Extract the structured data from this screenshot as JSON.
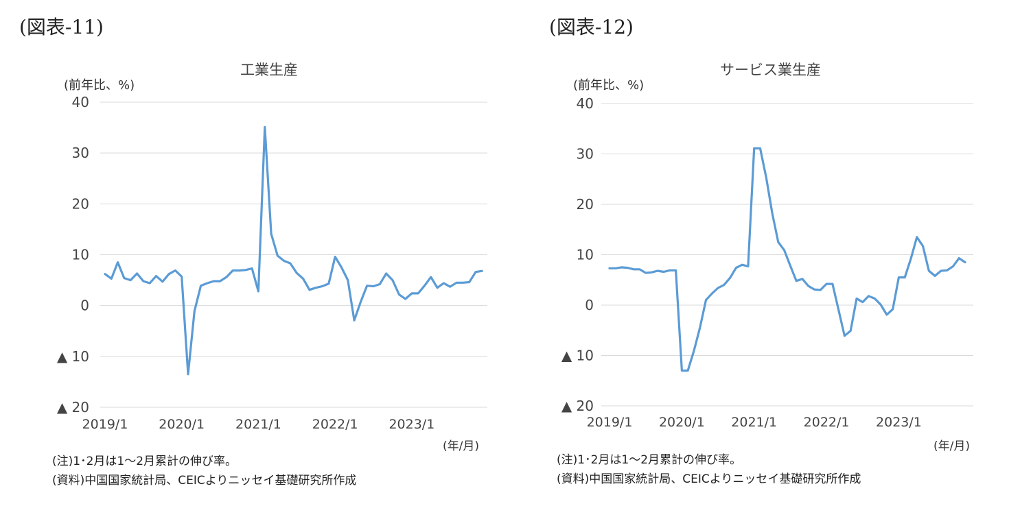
{
  "figures": [
    {
      "label": "(図表-11)",
      "unit_label": "(前年比、%)",
      "period_label": "(年/月)",
      "note1": "(注)1･2月は1～2月累計の伸び率。",
      "note2": "(資料)中国国家統計局、CEICよりニッセイ基礎研究所作成",
      "chart": {
        "type": "line",
        "title": "工業生産",
        "ylim": [
          -20,
          40
        ],
        "yticks": [
          {
            "v": 40,
            "label": "40"
          },
          {
            "v": 30,
            "label": "30"
          },
          {
            "v": 20,
            "label": "20"
          },
          {
            "v": 10,
            "label": "10"
          },
          {
            "v": 0,
            "label": "0"
          },
          {
            "v": -10,
            "label": "▲ 10"
          },
          {
            "v": -20,
            "label": "▲ 20"
          }
        ],
        "xticks": [
          {
            "i": 0,
            "label": "2019/1"
          },
          {
            "i": 12,
            "label": "2020/1"
          },
          {
            "i": 24,
            "label": "2021/1"
          },
          {
            "i": 36,
            "label": "2022/1"
          },
          {
            "i": 48,
            "label": "2023/1"
          }
        ],
        "x_count": 60,
        "line_color": "#5b9bd5",
        "grid": true,
        "values": [
          6.2,
          5.3,
          8.5,
          5.4,
          5.0,
          6.3,
          4.8,
          4.4,
          5.8,
          4.7,
          6.2,
          6.9,
          5.7,
          -13.5,
          -1.1,
          3.9,
          4.4,
          4.8,
          4.8,
          5.6,
          6.9,
          6.9,
          7.0,
          7.3,
          2.8,
          35.1,
          14.1,
          9.8,
          8.8,
          8.3,
          6.4,
          5.3,
          3.1,
          3.5,
          3.8,
          4.3,
          9.6,
          7.5,
          5.0,
          -2.9,
          0.7,
          3.9,
          3.8,
          4.2,
          6.3,
          5.0,
          2.2,
          1.3,
          2.4,
          2.4,
          3.9,
          5.6,
          3.5,
          4.4,
          3.7,
          4.5,
          4.5,
          4.6,
          6.6,
          6.8
        ]
      }
    },
    {
      "label": "(図表-12)",
      "unit_label": "(前年比、%)",
      "period_label": "(年/月)",
      "note1": "(注)1･2月は1～2月累計の伸び率。",
      "note2": "(資料)中国国家統計局、CEICよりニッセイ基礎研究所作成",
      "chart": {
        "type": "line",
        "title": "サービス業生産",
        "ylim": [
          -20,
          40
        ],
        "yticks": [
          {
            "v": 40,
            "label": "40"
          },
          {
            "v": 30,
            "label": "30"
          },
          {
            "v": 20,
            "label": "20"
          },
          {
            "v": 10,
            "label": "10"
          },
          {
            "v": 0,
            "label": "0"
          },
          {
            "v": -10,
            "label": "▲ 10"
          },
          {
            "v": -20,
            "label": "▲ 20"
          }
        ],
        "xticks": [
          {
            "i": 0,
            "label": "2019/1"
          },
          {
            "i": 12,
            "label": "2020/1"
          },
          {
            "i": 24,
            "label": "2021/1"
          },
          {
            "i": 36,
            "label": "2022/1"
          },
          {
            "i": 48,
            "label": "2023/1"
          }
        ],
        "x_count": 60,
        "line_color": "#5b9bd5",
        "grid": true,
        "values": [
          7.3,
          7.3,
          7.5,
          7.4,
          7.1,
          7.1,
          6.4,
          6.5,
          6.8,
          6.6,
          6.9,
          6.9,
          -13.0,
          -13.0,
          -9.1,
          -4.5,
          1.0,
          2.3,
          3.4,
          4.0,
          5.4,
          7.4,
          8.0,
          7.7,
          31.1,
          31.1,
          25.3,
          18.2,
          12.5,
          10.9,
          7.8,
          4.8,
          5.2,
          3.8,
          3.1,
          3.0,
          4.2,
          4.2,
          -0.9,
          -6.1,
          -5.1,
          1.3,
          0.6,
          1.8,
          1.3,
          0.1,
          -1.9,
          -0.8,
          5.5,
          5.5,
          9.2,
          13.5,
          11.7,
          6.8,
          5.8,
          6.8,
          6.9,
          7.7,
          9.3,
          8.5
        ]
      }
    }
  ]
}
